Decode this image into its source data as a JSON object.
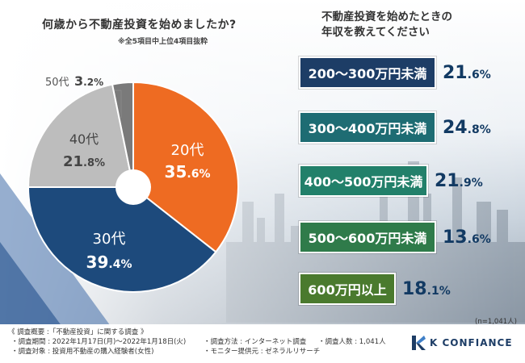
{
  "left_title": "何歳から不動産投資を始めましたか?",
  "left_note": "※全5項目中上位4項目抜粋",
  "right_title_line1": "不動産投資を始めたときの",
  "right_title_line2": "年収を教えてください",
  "sample_size": "(n=1,041人)",
  "colors": {
    "orange": "#ee6b22",
    "navy": "#1d4a7c",
    "lightgray": "#bdbdbd",
    "darkgray": "#7a7a7a",
    "bar_navy": "#1d3d66",
    "bar_teal": "#1e6c73",
    "bar_green1": "#22806a",
    "bar_green2": "#2f7b4a",
    "bar_green3": "#4a7a2e"
  },
  "chart_data": [
    {
      "type": "pie",
      "title": "何歳から不動産投資を始めましたか?",
      "slices": [
        {
          "label": "20代",
          "value": 35.6,
          "int": "35",
          "dec": ".6",
          "color": "#ee6b22"
        },
        {
          "label": "30代",
          "value": 39.4,
          "int": "39",
          "dec": ".4",
          "color": "#1d4a7c"
        },
        {
          "label": "40代",
          "value": 21.8,
          "int": "21",
          "dec": ".8",
          "color": "#bdbdbd"
        },
        {
          "label": "50代",
          "value": 3.2,
          "int": "3",
          "dec": ".2",
          "color": "#7a7a7a"
        }
      ]
    },
    {
      "type": "bar",
      "title": "不動産投資を始めたときの年収を教えてください",
      "categories": [
        "200〜300万円未満",
        "300〜400万円未満",
        "400〜500万円未満",
        "500〜600万円未満",
        "600万円以上"
      ],
      "values": [
        21.6,
        24.8,
        21.9,
        13.6,
        18.1
      ],
      "value_parts": [
        {
          "int": "21",
          "dec": ".6"
        },
        {
          "int": "24",
          "dec": ".8"
        },
        {
          "int": "21",
          "dec": ".9"
        },
        {
          "int": "13",
          "dec": ".6"
        },
        {
          "int": "18",
          "dec": ".1"
        }
      ],
      "unit": "%"
    }
  ],
  "survey": {
    "heading": "《 調査概要 :「不動産投資」に関する調査 》",
    "period": "・調査期間 : 2022年1月17日(月)〜2022年1月18日(火)",
    "method": "・調査方法 : インターネット調査",
    "count": "・調査人数 : 1,041人",
    "target": "・調査対象 : 投資用不動産の購入経験者(女性)",
    "provider": "・モニター提供元 : ゼネラルリサーチ"
  },
  "brand": {
    "name": "K CONFIANCE"
  }
}
